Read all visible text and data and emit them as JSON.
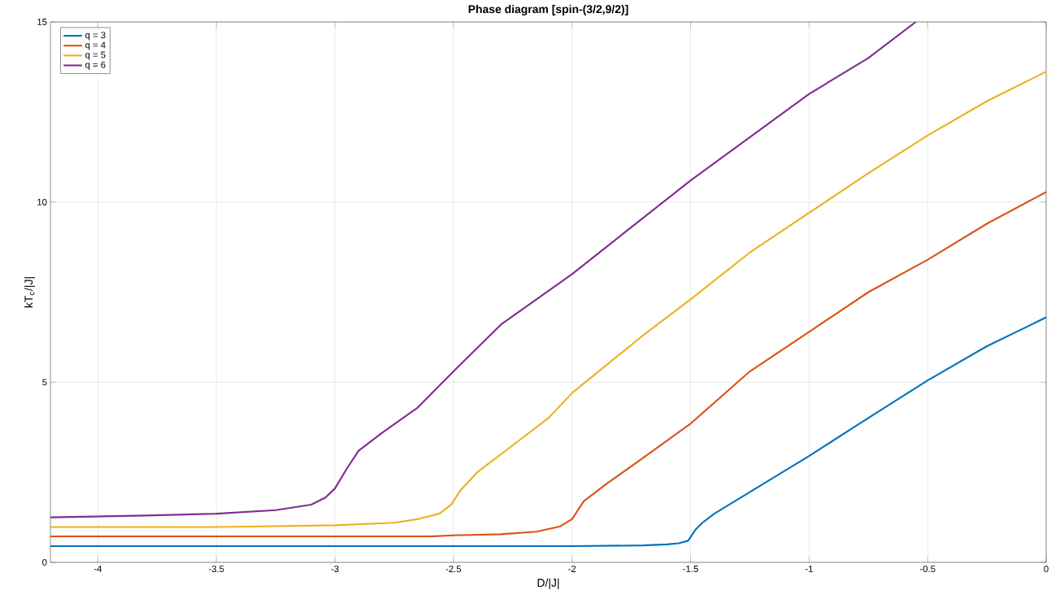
{
  "chart_data": {
    "type": "line",
    "title": "**Phase diagram [spin-(3/2,9/2)]**",
    "xlabel": "D/|J|",
    "ylabel": "kT$_{c}$/|J|",
    "xlim": [
      -4.2,
      0
    ],
    "ylim": [
      0,
      15
    ],
    "xticks": [
      -4,
      -3.5,
      -3,
      -2.5,
      -2,
      -1.5,
      -1,
      -0.5,
      0
    ],
    "yticks": [
      0,
      5,
      10,
      15
    ],
    "grid": true,
    "legend": "top left",
    "marker": "none",
    "line_style": "solid",
    "series": [
      {
        "name": "q = 3",
        "color": "#0072bd",
        "x": [
          -4.2,
          -3.5,
          -3,
          -2.5,
          -2,
          -1.7,
          -1.6,
          -1.55,
          -1.51,
          -1.48,
          -1.45,
          -1.4,
          -1.3,
          -1.2,
          -1,
          -0.8,
          -0.5,
          -0.25,
          0
        ],
        "values": [
          0.45,
          0.45,
          0.45,
          0.45,
          0.45,
          0.47,
          0.5,
          0.53,
          0.6,
          0.9,
          1.1,
          1.35,
          1.75,
          2.15,
          2.95,
          3.8,
          5.05,
          6.0,
          6.8
        ]
      },
      {
        "name": "q = 4",
        "color": "#d95319",
        "x": [
          -4.2,
          -3.5,
          -3,
          -2.6,
          -2.5,
          -2.3,
          -2.15,
          -2.05,
          -2.0,
          -1.95,
          -1.85,
          -1.7,
          -1.5,
          -1.25,
          -1,
          -0.75,
          -0.5,
          -0.25,
          0
        ],
        "values": [
          0.72,
          0.72,
          0.72,
          0.72,
          0.75,
          0.78,
          0.85,
          1.0,
          1.2,
          1.7,
          2.2,
          2.9,
          3.85,
          5.3,
          6.4,
          7.5,
          8.4,
          9.4,
          10.28
        ]
      },
      {
        "name": "q = 5",
        "color": "#edb120",
        "x": [
          -4.2,
          -3.5,
          -3,
          -2.75,
          -2.65,
          -2.56,
          -2.51,
          -2.47,
          -2.4,
          -2.3,
          -2.2,
          -2.1,
          -2.0,
          -1.7,
          -1.5,
          -1.25,
          -1,
          -0.75,
          -0.5,
          -0.25,
          0
        ],
        "values": [
          0.98,
          0.98,
          1.03,
          1.1,
          1.2,
          1.35,
          1.6,
          2.0,
          2.5,
          3.0,
          3.5,
          4.0,
          4.7,
          6.3,
          7.3,
          8.6,
          9.7,
          10.8,
          11.85,
          12.8,
          13.62
        ]
      },
      {
        "name": "q = 6",
        "color": "#7e2f8e",
        "x": [
          -4.2,
          -3.8,
          -3.5,
          -3.25,
          -3.1,
          -3.04,
          -3.0,
          -2.95,
          -2.9,
          -2.8,
          -2.65,
          -2.5,
          -2.3,
          -2.0,
          -1.75,
          -1.5,
          -1.25,
          -1,
          -0.75,
          -0.55
        ],
        "values": [
          1.25,
          1.3,
          1.35,
          1.45,
          1.6,
          1.8,
          2.05,
          2.6,
          3.1,
          3.6,
          4.3,
          5.3,
          6.6,
          8.0,
          9.3,
          10.6,
          11.8,
          13.0,
          14.0,
          15.0
        ]
      }
    ]
  }
}
